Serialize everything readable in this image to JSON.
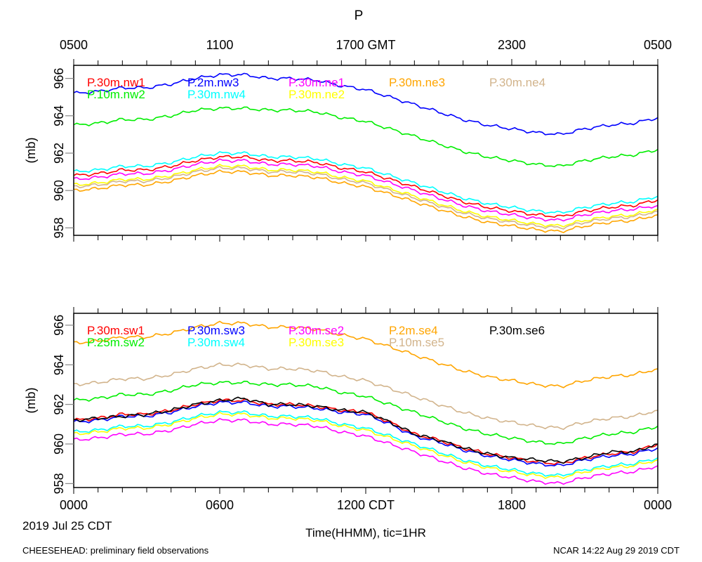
{
  "title": "P",
  "top_axis_labels": [
    "0500",
    "1100",
    "1700 GMT",
    "2300",
    "0500"
  ],
  "bottom_axis_labels": [
    "0000",
    "0600",
    "1200 CDT",
    "1800",
    "0000"
  ],
  "date_label": "2019 Jul 25 CDT",
  "xlabel": "Time(HHMM), tic=1HR",
  "footer_left": "CHEESEHEAD: preliminary field observations",
  "footer_right": "NCAR 14:22 Aug 29 2019 CDT",
  "chart_data": [
    {
      "type": "line",
      "panel": "top",
      "ylabel": "(mb)",
      "ylim": [
        957.6,
        966.7
      ],
      "yticks": [
        958,
        960,
        962,
        964,
        966
      ],
      "x_hours_cdt": [
        0,
        1,
        2,
        3,
        4,
        5,
        6,
        7,
        8,
        9,
        10,
        11,
        12,
        13,
        14,
        15,
        16,
        17,
        18,
        19,
        20,
        21,
        22,
        23,
        24
      ],
      "xlim": [
        0,
        24
      ],
      "grid": false,
      "legend": "top-inside",
      "series": [
        {
          "name": "P.30m.nw1",
          "color": "#ff0000",
          "values": [
            960.8,
            960.9,
            961.1,
            961.1,
            961.3,
            961.6,
            961.8,
            961.8,
            961.6,
            961.6,
            961.5,
            961.2,
            961.0,
            960.6,
            960.2,
            959.8,
            959.4,
            959.1,
            958.9,
            958.7,
            958.6,
            958.9,
            959.1,
            959.2,
            959.5
          ]
        },
        {
          "name": "P.10m.nw2",
          "color": "#00ee00",
          "values": [
            963.5,
            963.6,
            963.8,
            963.8,
            964.0,
            964.3,
            964.4,
            964.4,
            964.3,
            964.3,
            964.2,
            963.9,
            963.7,
            963.3,
            962.9,
            962.5,
            962.1,
            961.8,
            961.6,
            961.4,
            961.3,
            961.6,
            961.8,
            961.9,
            962.2
          ]
        },
        {
          "name": "P.2m.nw3",
          "color": "#0000ff",
          "values": [
            965.2,
            965.3,
            965.5,
            965.5,
            965.7,
            966.0,
            966.2,
            966.2,
            966.0,
            966.0,
            965.9,
            965.6,
            965.4,
            965.0,
            964.6,
            964.2,
            963.8,
            963.5,
            963.3,
            963.1,
            963.0,
            963.3,
            963.5,
            963.6,
            963.9
          ]
        },
        {
          "name": "P.30m.nw4",
          "color": "#00ffff",
          "values": [
            961.0,
            961.1,
            961.3,
            961.3,
            961.5,
            961.8,
            962.0,
            962.0,
            961.8,
            961.8,
            961.7,
            961.4,
            961.2,
            960.8,
            960.4,
            960.0,
            959.6,
            959.3,
            959.1,
            958.9,
            958.8,
            959.1,
            959.3,
            959.4,
            959.7
          ]
        },
        {
          "name": "P.30m.ne1",
          "color": "#ff00ff",
          "values": [
            960.6,
            960.7,
            960.9,
            960.9,
            961.1,
            961.4,
            961.6,
            961.6,
            961.4,
            961.4,
            961.3,
            961.0,
            960.8,
            960.4,
            960.0,
            959.6,
            959.2,
            958.9,
            958.7,
            958.5,
            958.4,
            958.7,
            958.9,
            959.0,
            959.2
          ]
        },
        {
          "name": "P.30m.ne2",
          "color": "#ffff00",
          "values": [
            960.3,
            960.4,
            960.6,
            960.6,
            960.8,
            961.1,
            961.3,
            961.3,
            961.1,
            961.1,
            961.0,
            960.7,
            960.5,
            960.1,
            959.7,
            959.3,
            958.9,
            958.6,
            958.4,
            958.2,
            958.1,
            958.4,
            958.6,
            958.7,
            959.0
          ]
        },
        {
          "name": "P.30m.ne3",
          "color": "#ffa500",
          "values": [
            960.0,
            960.1,
            960.3,
            960.3,
            960.5,
            960.8,
            961.0,
            961.0,
            960.8,
            960.8,
            960.7,
            960.4,
            960.2,
            959.8,
            959.4,
            959.0,
            958.6,
            958.3,
            958.1,
            957.9,
            957.8,
            958.1,
            958.3,
            958.4,
            958.7
          ]
        },
        {
          "name": "P.30m.ne4",
          "color": "#d2b48c",
          "values": [
            960.2,
            960.3,
            960.5,
            960.5,
            960.7,
            961.0,
            961.2,
            961.2,
            961.0,
            961.0,
            960.9,
            960.6,
            960.4,
            960.0,
            959.6,
            959.2,
            958.8,
            958.5,
            958.3,
            958.1,
            958.0,
            958.3,
            958.5,
            958.6,
            958.9
          ]
        }
      ]
    },
    {
      "type": "line",
      "panel": "bottom",
      "ylabel": "(mb)",
      "ylim": [
        957.8,
        966.6
      ],
      "yticks": [
        958,
        960,
        962,
        964,
        966
      ],
      "x_hours_cdt": [
        0,
        1,
        2,
        3,
        4,
        5,
        6,
        7,
        8,
        9,
        10,
        11,
        12,
        13,
        14,
        15,
        16,
        17,
        18,
        19,
        20,
        21,
        22,
        23,
        24
      ],
      "xlim": [
        0,
        24
      ],
      "grid": false,
      "legend": "top-inside",
      "series": [
        {
          "name": "P.30m.sw1",
          "color": "#ff0000",
          "values": [
            961.2,
            961.3,
            961.5,
            961.5,
            961.7,
            962.0,
            962.2,
            962.2,
            962.0,
            962.0,
            961.9,
            961.7,
            961.6,
            961.1,
            960.5,
            960.2,
            959.8,
            959.5,
            959.3,
            959.1,
            959.0,
            959.3,
            959.5,
            959.6,
            960.0
          ]
        },
        {
          "name": "P.25m.sw2",
          "color": "#00ee00",
          "values": [
            962.2,
            962.3,
            962.5,
            962.5,
            962.7,
            963.0,
            963.1,
            963.1,
            963.0,
            963.0,
            962.9,
            962.6,
            962.4,
            962.0,
            961.6,
            961.2,
            960.8,
            960.5,
            960.3,
            960.1,
            960.0,
            960.3,
            960.5,
            960.6,
            960.9
          ]
        },
        {
          "name": "P.30m.sw3",
          "color": "#0000ff",
          "values": [
            961.1,
            961.2,
            961.4,
            961.4,
            961.6,
            961.9,
            962.1,
            962.1,
            961.9,
            961.9,
            961.8,
            961.6,
            961.5,
            961.0,
            960.4,
            960.1,
            959.7,
            959.4,
            959.2,
            959.0,
            958.9,
            959.2,
            959.4,
            959.5,
            959.8
          ]
        },
        {
          "name": "P.30m.sw4",
          "color": "#00ffff",
          "values": [
            960.6,
            960.7,
            960.9,
            960.9,
            961.1,
            961.4,
            961.6,
            961.6,
            961.4,
            961.4,
            961.3,
            961.0,
            960.8,
            960.4,
            960.0,
            959.6,
            959.2,
            958.9,
            958.7,
            958.5,
            958.4,
            958.7,
            958.9,
            959.0,
            959.3
          ]
        },
        {
          "name": "P.30m.se2",
          "color": "#ff00ff",
          "values": [
            960.2,
            960.3,
            960.5,
            960.5,
            960.7,
            961.0,
            961.2,
            961.2,
            961.0,
            961.0,
            960.9,
            960.6,
            960.4,
            960.0,
            959.6,
            959.2,
            958.8,
            958.5,
            958.3,
            958.1,
            958.0,
            958.3,
            958.5,
            958.6,
            958.9
          ]
        },
        {
          "name": "P.30m.se3",
          "color": "#ffff00",
          "values": [
            960.5,
            960.6,
            960.8,
            960.8,
            961.0,
            961.3,
            961.5,
            961.5,
            961.3,
            961.3,
            961.2,
            960.9,
            960.7,
            960.3,
            959.9,
            959.5,
            959.1,
            958.8,
            958.6,
            958.4,
            958.3,
            958.6,
            958.8,
            958.9,
            959.2
          ]
        },
        {
          "name": "P.2m.se4",
          "color": "#ffa500",
          "values": [
            965.1,
            965.2,
            965.4,
            965.4,
            965.6,
            965.9,
            966.1,
            966.1,
            965.9,
            965.9,
            965.8,
            965.5,
            965.3,
            964.9,
            964.5,
            964.1,
            963.7,
            963.4,
            963.2,
            963.0,
            962.9,
            963.2,
            963.4,
            963.5,
            963.8
          ]
        },
        {
          "name": "P.10m.se5",
          "color": "#d2b48c",
          "values": [
            963.0,
            963.1,
            963.3,
            963.3,
            963.5,
            963.8,
            964.0,
            964.0,
            963.8,
            963.8,
            963.7,
            963.4,
            963.2,
            962.8,
            962.4,
            962.0,
            961.6,
            961.3,
            961.1,
            960.9,
            960.8,
            961.1,
            961.3,
            961.4,
            961.7
          ]
        },
        {
          "name": "P.30m.se6",
          "color": "#000000",
          "values": [
            961.2,
            961.3,
            961.4,
            961.5,
            961.7,
            962.0,
            962.2,
            962.3,
            962.0,
            962.0,
            961.9,
            961.7,
            961.6,
            961.1,
            960.5,
            960.2,
            959.8,
            959.5,
            959.3,
            959.2,
            959.1,
            959.3,
            959.6,
            959.6,
            960.0
          ]
        }
      ]
    }
  ]
}
